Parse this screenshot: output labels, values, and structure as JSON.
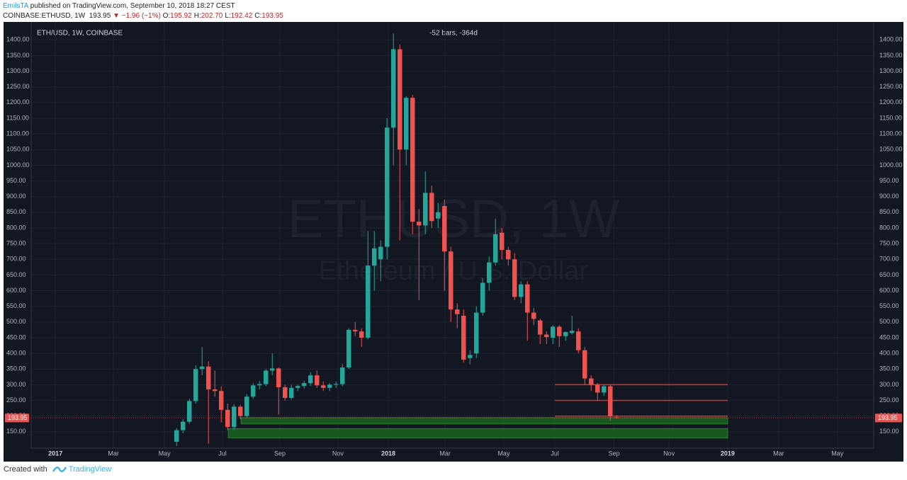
{
  "header": {
    "author": "EmilsTA",
    "published": "published on TradingView.com, September 10, 2018 18:27 CEST",
    "symbol": "COINBASE:ETHUSD, 1W",
    "last": "193.95",
    "change": "▼ −1.96 (−1%)",
    "ohlc": [
      {
        "label": "O:",
        "value": "195.92"
      },
      {
        "label": "H:",
        "value": "202.70"
      },
      {
        "label": "L:",
        "value": "192.42"
      },
      {
        "label": "C:",
        "value": "193.95"
      }
    ]
  },
  "chart_data": {
    "type": "candlestick",
    "title": "ETH/USD, 1W, COINBASE",
    "watermark": "ETHUSD, 1W",
    "watermark_subtitle": "Ethereum / U.S. Dollar",
    "measure_label": "-52 bars, -364d",
    "open": [
      118,
      155,
      182,
      248,
      350,
      358,
      285,
      280,
      220,
      165,
      230,
      200,
      262,
      298,
      302,
      345,
      352,
      292,
      258,
      290,
      296,
      305,
      330,
      298,
      290,
      300,
      302,
      355,
      475,
      470,
      450,
      680,
      700,
      740,
      1120,
      1370,
      1050,
      1215,
      820,
      808,
      912,
      830,
      870,
      725,
      540,
      520,
      385,
      400,
      530,
      625,
      690,
      785,
      730,
      700,
      580,
      620,
      530,
      505,
      460,
      450,
      485,
      455,
      465,
      470,
      410,
      320,
      300,
      275,
      295,
      195.92
    ],
    "high": [
      162,
      190,
      255,
      362,
      420,
      375,
      345,
      295,
      240,
      238,
      235,
      270,
      305,
      312,
      350,
      400,
      355,
      300,
      300,
      300,
      312,
      340,
      345,
      310,
      305,
      310,
      365,
      480,
      500,
      480,
      790,
      790,
      760,
      1150,
      1420,
      1385,
      1220,
      1225,
      860,
      980,
      935,
      880,
      890,
      740,
      560,
      540,
      410,
      550,
      640,
      710,
      830,
      800,
      740,
      720,
      630,
      630,
      545,
      510,
      470,
      490,
      490,
      470,
      520,
      480,
      420,
      330,
      305,
      300,
      300,
      202.7
    ],
    "low": [
      105,
      145,
      175,
      240,
      330,
      112,
      262,
      180,
      155,
      155,
      190,
      195,
      255,
      285,
      295,
      330,
      205,
      250,
      252,
      280,
      288,
      295,
      290,
      280,
      280,
      290,
      295,
      350,
      455,
      420,
      445,
      600,
      630,
      700,
      1000,
      760,
      1000,
      780,
      570,
      780,
      800,
      800,
      600,
      500,
      480,
      370,
      365,
      385,
      520,
      600,
      680,
      700,
      680,
      570,
      560,
      440,
      490,
      430,
      430,
      430,
      420,
      440,
      460,
      400,
      300,
      280,
      250,
      265,
      185,
      192.42
    ],
    "close": [
      155,
      182,
      248,
      350,
      358,
      285,
      280,
      220,
      165,
      230,
      200,
      262,
      298,
      302,
      345,
      352,
      292,
      258,
      290,
      296,
      305,
      330,
      298,
      290,
      300,
      302,
      355,
      475,
      470,
      450,
      680,
      735,
      740,
      1120,
      1370,
      1050,
      1215,
      820,
      808,
      912,
      822,
      850,
      725,
      540,
      525,
      380,
      395,
      530,
      625,
      690,
      780,
      730,
      700,
      580,
      620,
      530,
      510,
      460,
      452,
      485,
      455,
      468,
      472,
      410,
      320,
      300,
      275,
      295,
      200,
      193.95
    ],
    "up_color": "#26a69a",
    "down_color": "#ef5350",
    "ylim": [
      100,
      1448
    ],
    "yticks": [
      {
        "value": 150,
        "label": "150.00"
      },
      {
        "value": 200,
        "label": "200.00"
      },
      {
        "value": 250,
        "label": "250.00"
      },
      {
        "value": 300,
        "label": "300.00"
      },
      {
        "value": 350,
        "label": "350.00"
      },
      {
        "value": 400,
        "label": "400.00"
      },
      {
        "value": 450,
        "label": "450.00"
      },
      {
        "value": 500,
        "label": "500.00"
      },
      {
        "value": 550,
        "label": "550.00"
      },
      {
        "value": 600,
        "label": "600.00"
      },
      {
        "value": 650,
        "label": "650.00"
      },
      {
        "value": 700,
        "label": "700.00"
      },
      {
        "value": 750,
        "label": "750.00"
      },
      {
        "value": 800,
        "label": "800.00"
      },
      {
        "value": 850,
        "label": "850.00"
      },
      {
        "value": 900,
        "label": "900.00"
      },
      {
        "value": 950,
        "label": "950.00"
      },
      {
        "value": 1000,
        "label": "1000.00"
      },
      {
        "value": 1050,
        "label": "1050.00"
      },
      {
        "value": 1100,
        "label": "1100.00"
      },
      {
        "value": 1150,
        "label": "1150.00"
      },
      {
        "value": 1200,
        "label": "1200.00"
      },
      {
        "value": 1250,
        "label": "1250.00"
      },
      {
        "value": 1300,
        "label": "1300.00"
      },
      {
        "value": 1350,
        "label": "1350.00"
      },
      {
        "value": 1400,
        "label": "1400.00"
      }
    ],
    "xlim": [
      -22.8,
      109.3
    ],
    "xticks": [
      {
        "value": -19,
        "label": "2017"
      },
      {
        "value": -9.9,
        "label": "Mar"
      },
      {
        "value": -1.9,
        "label": "May"
      },
      {
        "value": 7.2,
        "label": "Jul"
      },
      {
        "value": 16.2,
        "label": "Sep"
      },
      {
        "value": 25.3,
        "label": "Nov"
      },
      {
        "value": 33.2,
        "label": "2018"
      },
      {
        "value": 42.1,
        "label": "Mar"
      },
      {
        "value": 51.3,
        "label": "May"
      },
      {
        "value": 59.3,
        "label": "Jul"
      },
      {
        "value": 68.6,
        "label": "Sep"
      },
      {
        "value": 77.2,
        "label": "Nov"
      },
      {
        "value": 86.4,
        "label": "2019"
      },
      {
        "value": 94.4,
        "label": "Mar"
      },
      {
        "value": 103.6,
        "label": "May"
      }
    ],
    "price_line": {
      "value": 193.95,
      "label": "193.95",
      "color": "#ef5350"
    },
    "levels": [
      {
        "value": 300,
        "x": [
          59.3,
          86.4
        ],
        "color": "#e0302b"
      },
      {
        "value": 250,
        "x": [
          59.3,
          86.4
        ],
        "color": "#e0302b"
      },
      {
        "value": 200,
        "x": [
          59.3,
          86.4
        ],
        "color": "#e0302b"
      }
    ],
    "zones": [
      {
        "low": 175,
        "high": 195,
        "x": [
          10.1,
          86.4
        ],
        "color": "#1b5e20"
      },
      {
        "low": 130,
        "high": 160,
        "x": [
          8.1,
          86.4
        ],
        "color": "#1b5e20"
      }
    ],
    "grid": true
  },
  "footer": {
    "text": "Created with",
    "brand": "TradingView"
  }
}
